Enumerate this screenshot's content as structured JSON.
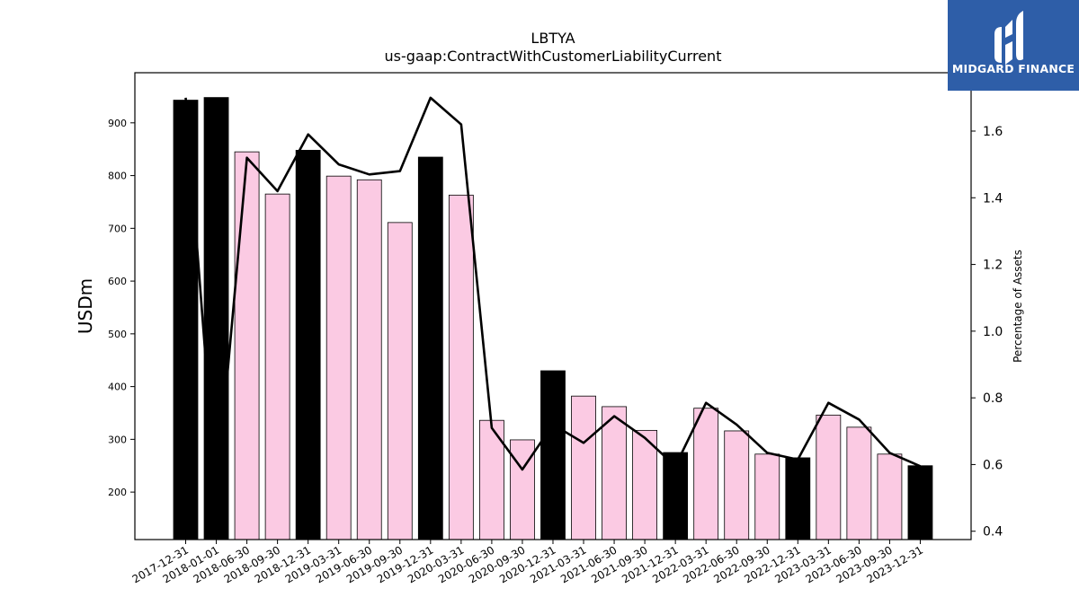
{
  "chart_data": {
    "type": "bar",
    "title": "LBTYA",
    "subtitle": "us-gaap:ContractWithCustomerLiabilityCurrent",
    "ylabel": "USDm",
    "y2label": "Percentage of Assets",
    "categories": [
      "2017-12-31",
      "2018-01-01",
      "2018-06-30",
      "2018-09-30",
      "2018-12-31",
      "2019-03-31",
      "2019-06-30",
      "2019-09-30",
      "2019-12-31",
      "2020-03-31",
      "2020-06-30",
      "2020-09-30",
      "2020-12-31",
      "2021-03-31",
      "2021-06-30",
      "2021-09-30",
      "2021-12-31",
      "2022-03-31",
      "2022-06-30",
      "2022-09-30",
      "2022-12-31",
      "2023-03-31",
      "2023-06-30",
      "2023-09-30",
      "2023-12-31"
    ],
    "series": [
      {
        "type": "bar",
        "values": [
          943,
          948,
          845,
          765,
          848,
          799,
          792,
          711,
          835,
          763,
          336,
          299,
          430,
          382,
          362,
          317,
          275,
          359,
          316,
          272,
          265,
          346,
          323,
          272,
          250
        ],
        "highlight": [
          true,
          true,
          false,
          false,
          true,
          false,
          false,
          false,
          true,
          false,
          false,
          false,
          true,
          false,
          false,
          false,
          true,
          false,
          false,
          false,
          true,
          false,
          false,
          false,
          true
        ],
        "colors": {
          "highlight": "#000000",
          "normal": "#fbcae3"
        }
      },
      {
        "type": "line",
        "axis": "right",
        "values": [
          1.7,
          0.5,
          1.52,
          1.42,
          1.59,
          1.5,
          1.47,
          1.48,
          1.7,
          1.62,
          0.71,
          0.585,
          0.72,
          0.665,
          0.745,
          0.68,
          0.595,
          0.785,
          0.72,
          0.635,
          0.615,
          0.785,
          0.735,
          0.635,
          0.595
        ],
        "color": "#000000"
      }
    ],
    "ylim": [
      110,
      995
    ],
    "y2lim": [
      0.375,
      1.775
    ],
    "yticks": [
      200,
      300,
      400,
      500,
      600,
      700,
      800,
      900
    ],
    "y2ticks": [
      0.4,
      0.6,
      0.8,
      1.0,
      1.2,
      1.4,
      1.6
    ],
    "grid": false,
    "legend": "none"
  },
  "logo": {
    "text": "MIDGARD FINANCE",
    "background": "#2e5ea8"
  }
}
